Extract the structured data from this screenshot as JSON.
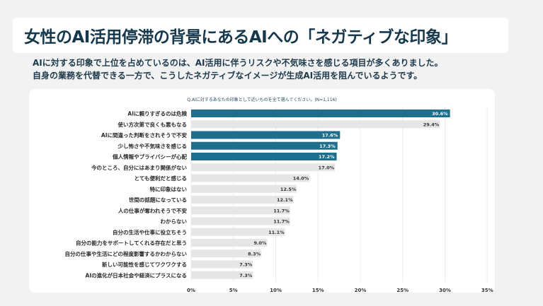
{
  "header": {
    "title": "女性のAI活用停滞の背景にあるAIへの「ネガティブな印象」"
  },
  "description": {
    "line1": "AIに対する印象で上位を占めているのは、AI活用に伴うリスクや不気味さを感じる項目が多くありました。",
    "line2": "自身の業務を代替できる一方で、こうしたネガティブなイメージが生成AI活用を阻んでいるようです。"
  },
  "colors": {
    "highlight": "#1e6e8e",
    "normal": "#e6e6e6",
    "background": "#f2f2f2",
    "title": "#16384d"
  },
  "chart_data": {
    "type": "bar",
    "orientation": "horizontal",
    "title": "Q.AIに対するあなたの印象として近いものを全て選んでください。(N=1,116)",
    "xlabel": "",
    "ylabel": "",
    "xlim": [
      0,
      35
    ],
    "xticks": [
      "0%",
      "5%",
      "10%",
      "15%",
      "20%",
      "25%",
      "30%",
      "35%"
    ],
    "grid": true,
    "categories": [
      "AIに頼りすぎるのは危険",
      "使い方次第で良くも悪もなる",
      "AIに間違った判断をされそうで不安",
      "少し怖さや不気味さを感じる",
      "個人情報やプライバシーが心配",
      "今のところ、自分にはあまり関係がない",
      "とても便利だと感じる",
      "特に印象はない",
      "世間の話題になっている",
      "人の仕事が奪われそうで不安",
      "わからない",
      "自分の生活や仕事に役立ちそう",
      "自分の能力をサポートしてくれる存在だと思う",
      "自分の仕事や生活にどの程度影響するかわからない",
      "新しい可能性を感じてワクワクする",
      "AIの進化が日本社会や経済にプラスになる"
    ],
    "values": [
      30.6,
      29.4,
      17.6,
      17.3,
      17.2,
      17.0,
      14.0,
      12.5,
      12.1,
      11.7,
      11.7,
      11.1,
      9.0,
      8.3,
      7.3,
      7.3
    ],
    "value_labels": [
      "30.6%",
      "29.4%",
      "17.6%",
      "17.3%",
      "17.2%",
      "17.0%",
      "14.0%",
      "12.5%",
      "12.1%",
      "11.7%",
      "11.7%",
      "11.1%",
      "9.0%",
      "8.3%",
      "7.3%",
      "7.3%"
    ],
    "highlighted": [
      true,
      false,
      true,
      true,
      true,
      false,
      false,
      false,
      false,
      false,
      false,
      false,
      false,
      false,
      false,
      false
    ]
  }
}
